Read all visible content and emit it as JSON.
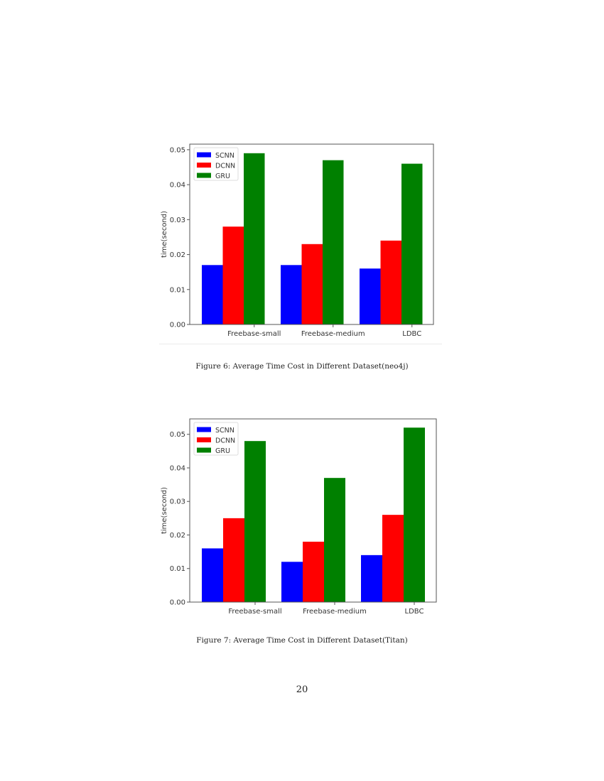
{
  "page": {
    "number": "20"
  },
  "figures": [
    {
      "caption": "Figure 6: Average Time Cost in Different Dataset(neo4j)"
    },
    {
      "caption": "Figure 7: Average Time Cost in Different Dataset(Titan)"
    }
  ],
  "chart_data": [
    {
      "type": "bar",
      "title": "",
      "categories": [
        "Freebase-small",
        "Freebase-medium",
        "LDBC"
      ],
      "series": [
        {
          "name": "SCNN",
          "color": "#0000ff",
          "values": [
            0.017,
            0.017,
            0.016
          ]
        },
        {
          "name": "DCNN",
          "color": "#ff0000",
          "values": [
            0.028,
            0.023,
            0.024
          ]
        },
        {
          "name": "GRU",
          "color": "#008000",
          "values": [
            0.049,
            0.047,
            0.046
          ]
        }
      ],
      "xlabel": "",
      "ylabel": "time(second)",
      "yticks": [
        "0.00",
        "0.01",
        "0.02",
        "0.03",
        "0.04",
        "0.05"
      ],
      "ylim": [
        0,
        0.0516
      ],
      "grid": false,
      "legend_position": "upper left"
    },
    {
      "type": "bar",
      "title": "",
      "categories": [
        "Freebase-small",
        "Freebase-medium",
        "LDBC"
      ],
      "series": [
        {
          "name": "SCNN",
          "color": "#0000ff",
          "values": [
            0.016,
            0.012,
            0.014
          ]
        },
        {
          "name": "DCNN",
          "color": "#ff0000",
          "values": [
            0.025,
            0.018,
            0.026
          ]
        },
        {
          "name": "GRU",
          "color": "#008000",
          "values": [
            0.048,
            0.037,
            0.052
          ]
        }
      ],
      "xlabel": "",
      "ylabel": "time(second)",
      "yticks": [
        "0.00",
        "0.01",
        "0.02",
        "0.03",
        "0.04",
        "0.05"
      ],
      "ylim": [
        0,
        0.0546
      ],
      "grid": false,
      "legend_position": "upper left"
    }
  ]
}
